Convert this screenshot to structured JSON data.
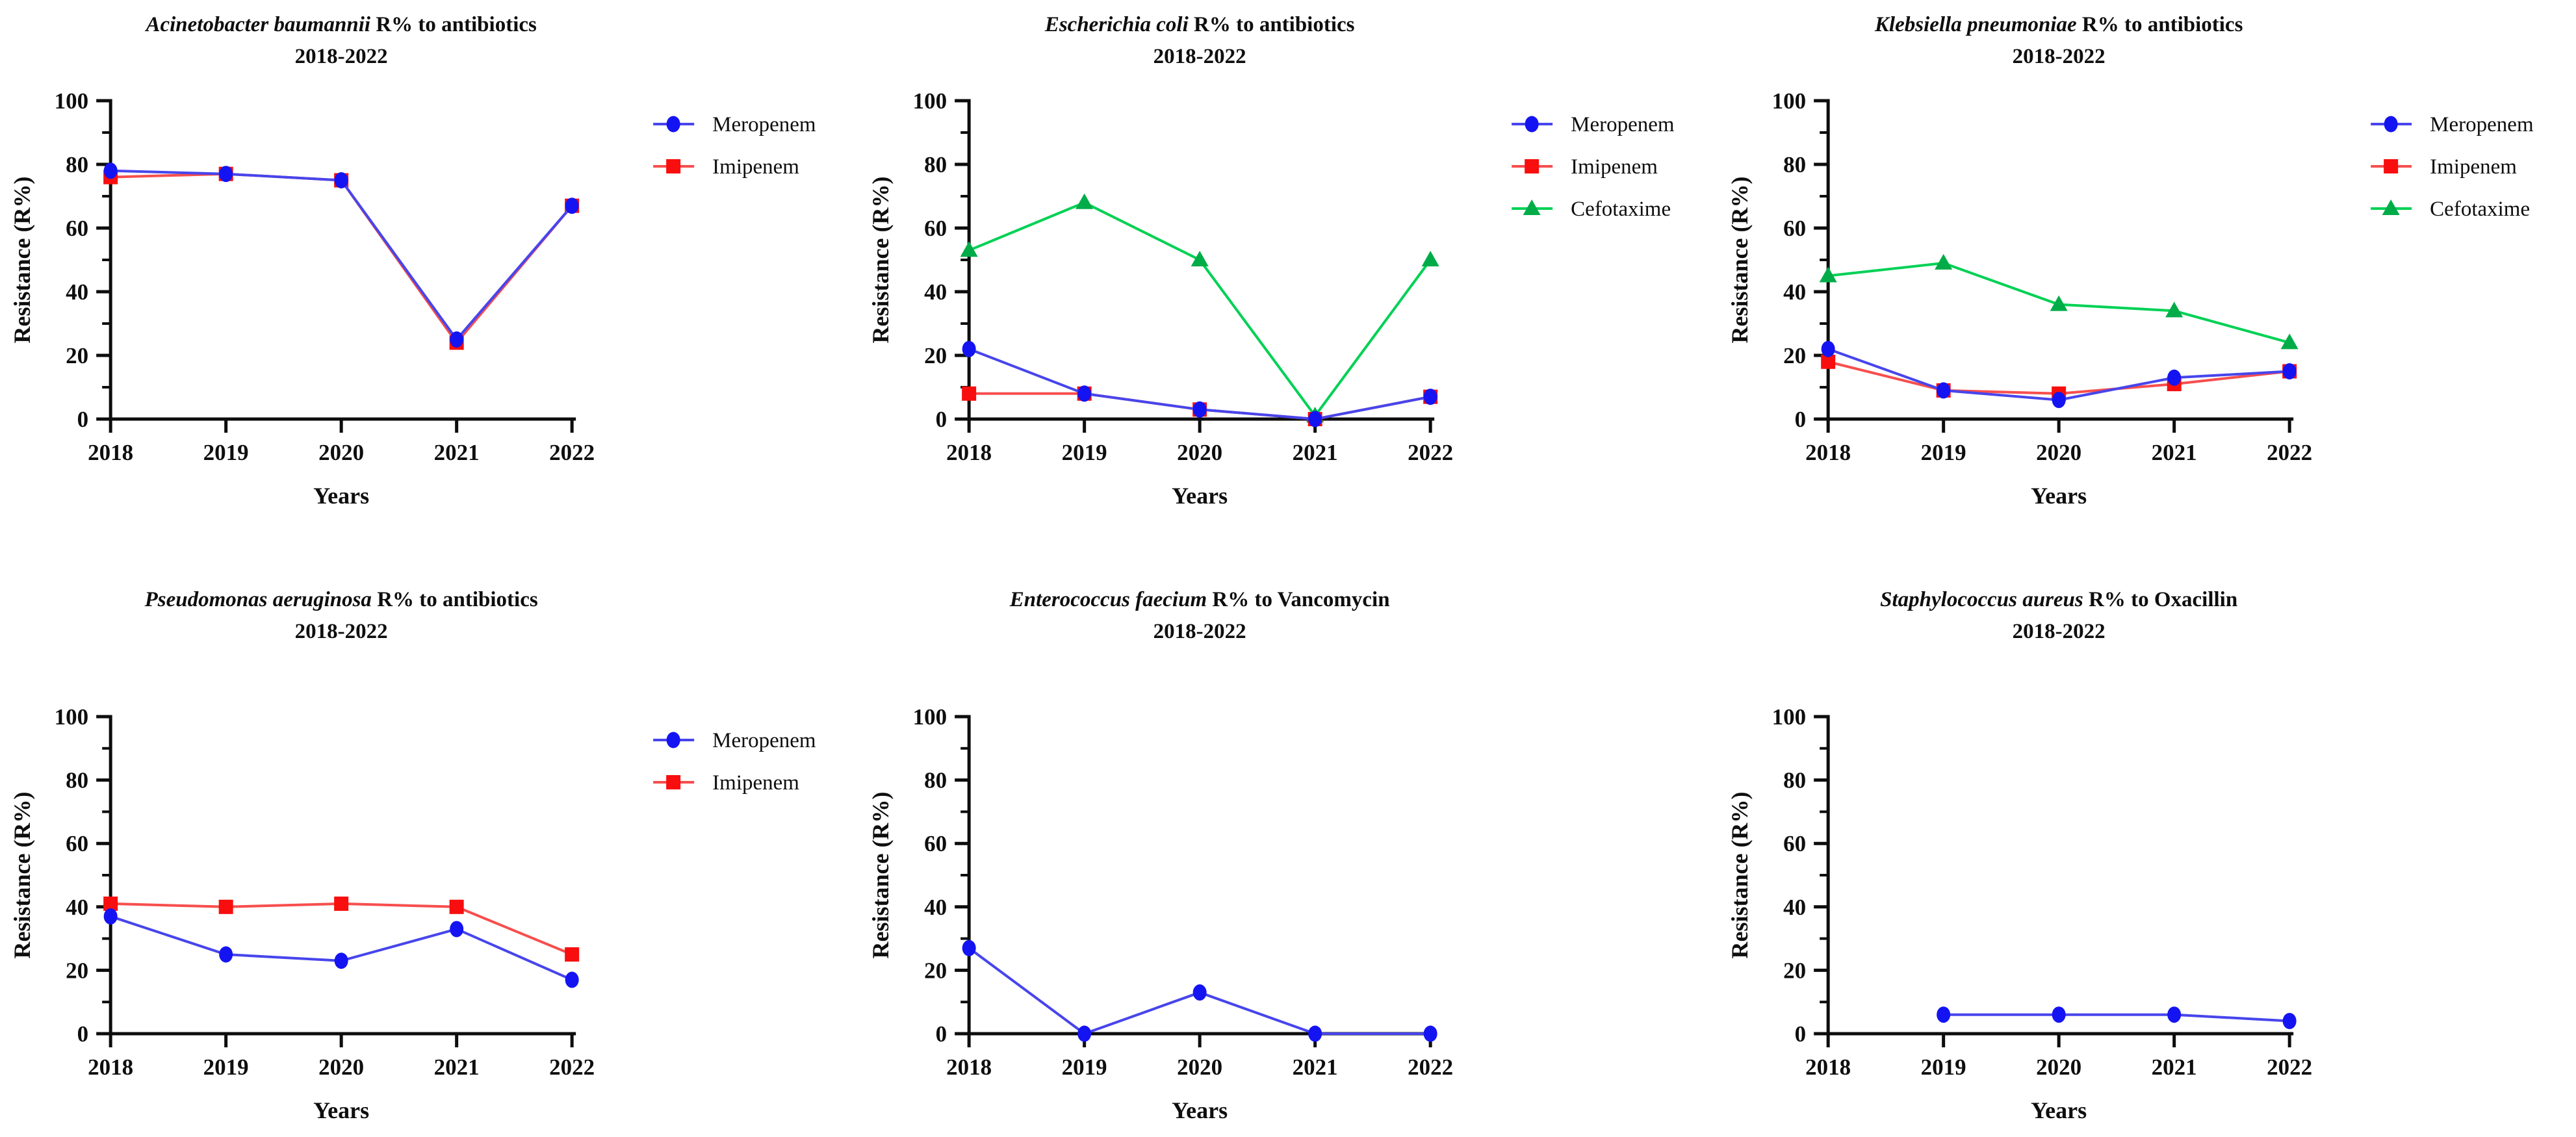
{
  "figure": {
    "description": "Six line charts of antimicrobial resistance percentages 2018-2022",
    "background_color": "#ffffff",
    "text_color": "#0e0e0e",
    "axis_color": "#0d0d0d",
    "series_styles": {
      "blue": {
        "line_color": "#4745EC",
        "marker_color": "#1414F2",
        "marker": "circle"
      },
      "red": {
        "line_color": "#F74E4E",
        "marker_color": "#F80E0E",
        "marker": "square"
      },
      "green": {
        "line_color": "#00D155",
        "marker_color": "#00AC48",
        "marker": "triangle"
      }
    }
  },
  "chart_data": [
    {
      "type": "line",
      "title_italic": "Acinetobacter baumannii",
      "title_rest": "R% to antibiotics",
      "subtitle": "2018-2022",
      "xlabel": "Years",
      "ylabel": "Resistance (R%)",
      "x": [
        "2018",
        "2019",
        "2020",
        "2021",
        "2022"
      ],
      "ylim": [
        0,
        100
      ],
      "yticks": [
        0,
        20,
        40,
        60,
        80,
        100
      ],
      "yticks_minor": [
        10,
        30,
        50,
        70,
        90
      ],
      "legend_position": "right",
      "row": 0,
      "series": [
        {
          "name": "Meropenem",
          "style": "blue",
          "values": [
            78,
            77,
            75,
            25,
            67
          ]
        },
        {
          "name": "Imipenem",
          "style": "red",
          "values": [
            76,
            77,
            75,
            24,
            67
          ]
        }
      ]
    },
    {
      "type": "line",
      "title_italic": "Escherichia coli",
      "title_rest": "R% to antibiotics",
      "subtitle": "2018-2022",
      "xlabel": "Years",
      "ylabel": "Resistance (R%)",
      "x": [
        "2018",
        "2019",
        "2020",
        "2021",
        "2022"
      ],
      "ylim": [
        0,
        100
      ],
      "yticks": [
        0,
        20,
        40,
        60,
        80,
        100
      ],
      "yticks_minor": [
        10,
        30,
        50,
        70,
        90
      ],
      "legend_position": "right",
      "row": 0,
      "series": [
        {
          "name": "Meropenem",
          "style": "blue",
          "values": [
            22,
            8,
            3,
            0,
            7
          ]
        },
        {
          "name": "Imipenem",
          "style": "red",
          "values": [
            8,
            8,
            3,
            0,
            7
          ]
        },
        {
          "name": "Cefotaxime",
          "style": "green",
          "values": [
            53,
            68,
            50,
            1,
            50
          ]
        }
      ]
    },
    {
      "type": "line",
      "title_italic": "Klebsiella pneumoniae",
      "title_rest": "R% to antibiotics",
      "subtitle": "2018-2022",
      "xlabel": "Years",
      "ylabel": "Resistance (R%)",
      "x": [
        "2018",
        "2019",
        "2020",
        "2021",
        "2022"
      ],
      "ylim": [
        0,
        100
      ],
      "yticks": [
        0,
        20,
        40,
        60,
        80,
        100
      ],
      "yticks_minor": [
        10,
        30,
        50,
        70,
        90
      ],
      "legend_position": "right",
      "row": 0,
      "series": [
        {
          "name": "Meropenem",
          "style": "blue",
          "values": [
            22,
            9,
            6,
            13,
            15
          ]
        },
        {
          "name": "Imipenem",
          "style": "red",
          "values": [
            18,
            9,
            8,
            11,
            15
          ]
        },
        {
          "name": "Cefotaxime",
          "style": "green",
          "values": [
            45,
            49,
            36,
            34,
            24
          ]
        }
      ]
    },
    {
      "type": "line",
      "title_italic": "Pseudomonas aeruginosa",
      "title_rest": "R% to antibiotics",
      "subtitle": "2018-2022",
      "xlabel": "Years",
      "ylabel": "Resistance (R%)",
      "x": [
        "2018",
        "2019",
        "2020",
        "2021",
        "2022"
      ],
      "ylim": [
        0,
        100
      ],
      "yticks": [
        0,
        20,
        40,
        60,
        80,
        100
      ],
      "yticks_minor": [
        10,
        30,
        50,
        70,
        90
      ],
      "legend_position": "right",
      "row": 1,
      "series": [
        {
          "name": "Meropenem",
          "style": "blue",
          "values": [
            37,
            25,
            23,
            33,
            17
          ]
        },
        {
          "name": "Imipenem",
          "style": "red",
          "values": [
            41,
            40,
            41,
            40,
            25
          ]
        }
      ]
    },
    {
      "type": "line",
      "title_italic": "Enterococcus faecium",
      "title_rest": "R% to Vancomycin",
      "subtitle": "2018-2022",
      "xlabel": "Years",
      "ylabel": "Resistance (R%)",
      "x": [
        "2018",
        "2019",
        "2020",
        "2021",
        "2022"
      ],
      "ylim": [
        0,
        100
      ],
      "yticks": [
        0,
        20,
        40,
        60,
        80,
        100
      ],
      "yticks_minor": [
        10,
        30,
        50,
        70,
        90
      ],
      "legend_position": "none",
      "row": 1,
      "series": [
        {
          "name": "Vancomycin",
          "style": "blue",
          "values": [
            27,
            0,
            13,
            0,
            0
          ]
        }
      ]
    },
    {
      "type": "line",
      "title_italic": "Staphylococcus aureus",
      "title_rest": "R% to Oxacillin",
      "subtitle": "2018-2022",
      "xlabel": "Years",
      "ylabel": "Resistance (R%)",
      "x": [
        "2018",
        "2019",
        "2020",
        "2021",
        "2022"
      ],
      "ylim": [
        0,
        100
      ],
      "yticks": [
        0,
        20,
        40,
        60,
        80,
        100
      ],
      "yticks_minor": [
        10,
        30,
        50,
        70,
        90
      ],
      "legend_position": "none",
      "row": 1,
      "series": [
        {
          "name": "Oxacillin",
          "style": "blue",
          "values": [
            null,
            6,
            6,
            6,
            4
          ]
        }
      ]
    }
  ]
}
